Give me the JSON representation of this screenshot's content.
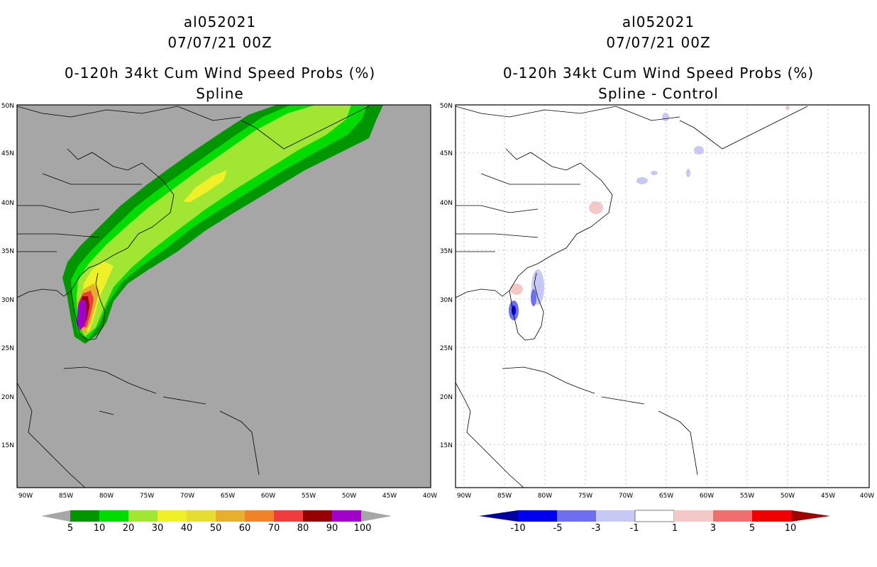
{
  "left_panel": {
    "title": [
      "al052021",
      "07/07/21 00Z",
      "0-120h 34kt Cum Wind Speed Probs (%)",
      "Spline"
    ],
    "x_ticks": [
      "90W",
      "85W",
      "80W",
      "75W",
      "70W",
      "65W",
      "60W",
      "55W",
      "50W",
      "45W",
      "40W"
    ],
    "y_ticks": [
      "50N",
      "45N",
      "40N",
      "35N",
      "30N",
      "25N",
      "20N",
      "15N"
    ],
    "colorbar_labels": [
      "5",
      "10",
      "20",
      "30",
      "40",
      "50",
      "60",
      "70",
      "80",
      "90",
      "100"
    ],
    "colorbar_colors": [
      "#009600",
      "#00dc00",
      "#a0e632",
      "#f0f028",
      "#e6dc32",
      "#e6af2d",
      "#f08228",
      "#f03c3c",
      "#960000",
      "#a000c8"
    ],
    "background_color": "#a6a6a6",
    "end_arrow_color": "#a6a6a6"
  },
  "right_panel": {
    "title": [
      "al052021",
      "07/07/21 00Z",
      "0-120h 34kt Cum Wind Speed Probs (%)",
      "Spline - Control"
    ],
    "x_ticks": [
      "90W",
      "85W",
      "80W",
      "75W",
      "70W",
      "65W",
      "60W",
      "55W",
      "50W",
      "45W",
      "40W"
    ],
    "y_ticks": [
      "50N",
      "45N",
      "40N",
      "35N",
      "30N",
      "25N",
      "20N",
      "15N"
    ],
    "colorbar_labels": [
      "-10",
      "-5",
      "-3",
      "-1",
      "1",
      "3",
      "5",
      "10"
    ],
    "colorbar_colors": [
      "#0000a0",
      "#0000f0",
      "#6e6ef0",
      "#c8c8f5",
      "#ffffff",
      "#f5c8c8",
      "#f06e6e",
      "#f00000",
      "#a00000"
    ],
    "background_color": "#ffffff"
  }
}
